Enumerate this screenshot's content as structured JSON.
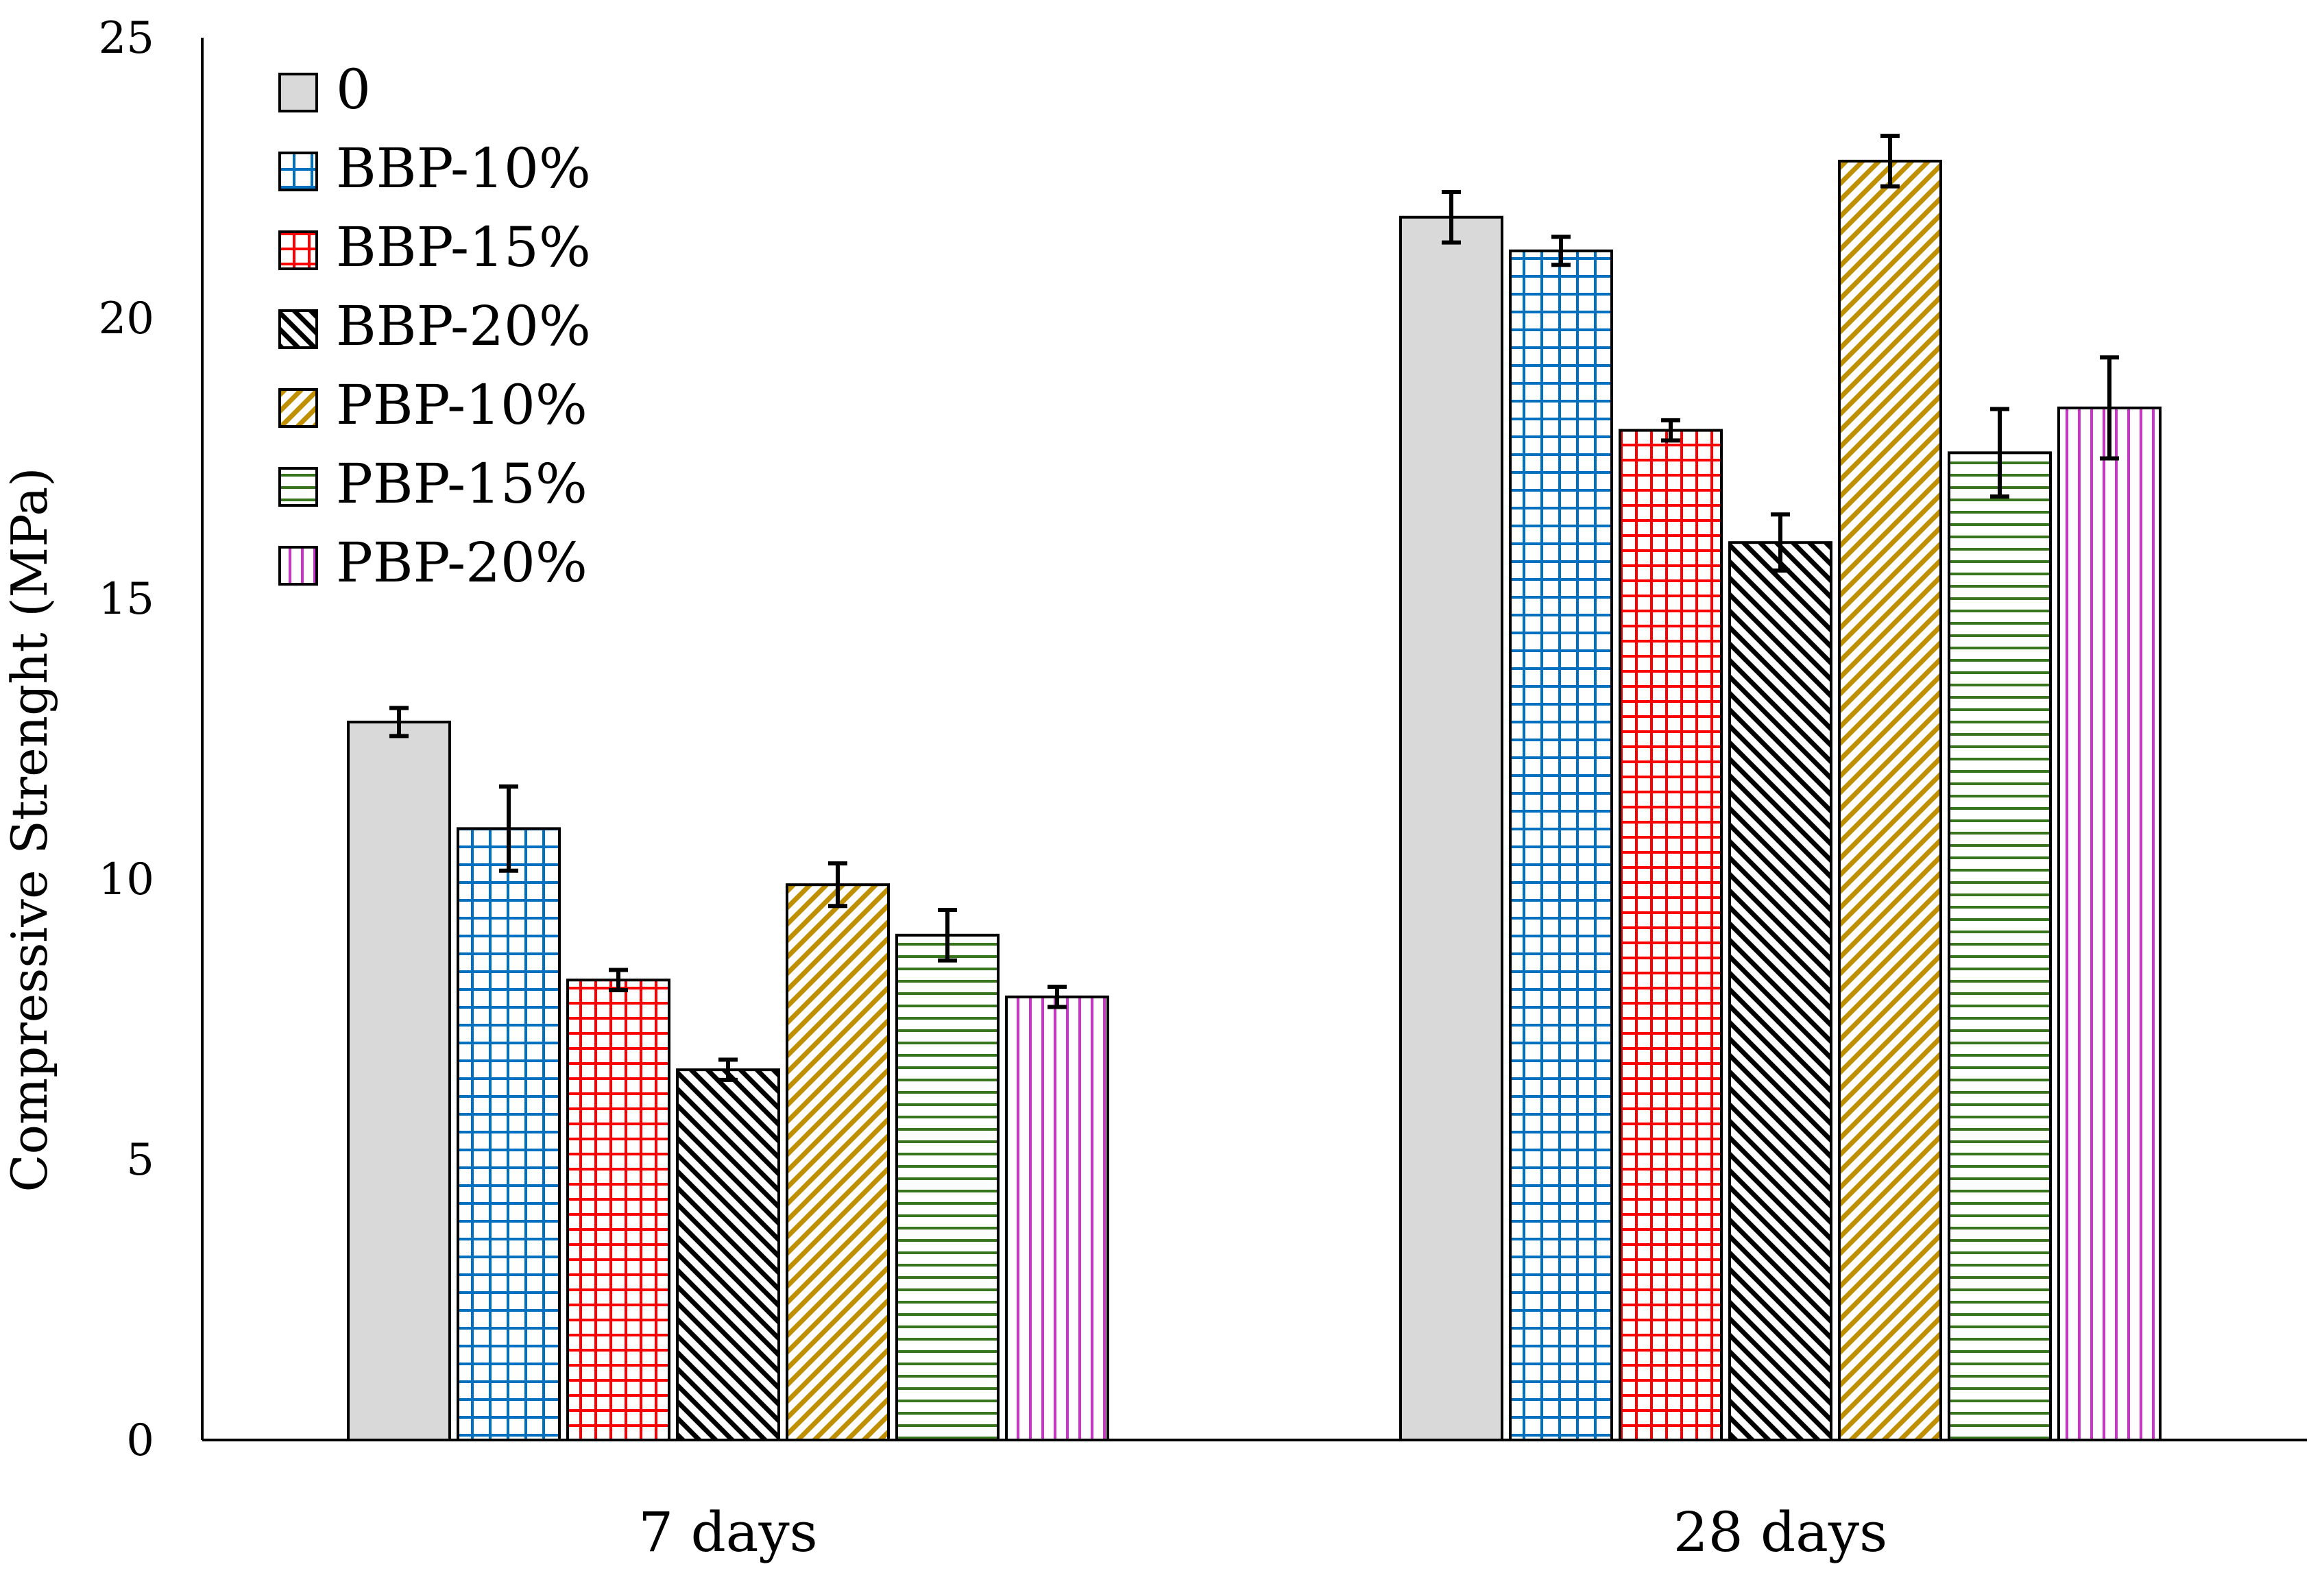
{
  "chart_data": {
    "type": "bar",
    "title": "",
    "xlabel": "",
    "ylabel": "Compressive  Strenght  (MPa)",
    "ylim": [
      0,
      25
    ],
    "yticks": [
      0,
      5,
      10,
      15,
      20,
      25
    ],
    "categories": [
      "7 days",
      "28 days"
    ],
    "legend_position": "top-left",
    "grid": false,
    "series": [
      {
        "name": "0",
        "values": [
          12.8,
          21.8
        ],
        "errors": [
          0.25,
          0.45
        ],
        "color": "#d9d9d9",
        "pattern": "solid"
      },
      {
        "name": "BBP-10%",
        "values": [
          10.9,
          21.2
        ],
        "errors": [
          0.75,
          0.25
        ],
        "color": "#0070c0",
        "pattern": "grid-wide"
      },
      {
        "name": "BBP-15%",
        "values": [
          8.2,
          18.0
        ],
        "errors": [
          0.18,
          0.18
        ],
        "color": "#ff0000",
        "pattern": "grid"
      },
      {
        "name": "BBP-20%",
        "values": [
          6.6,
          16.0
        ],
        "errors": [
          0.18,
          0.5
        ],
        "color": "#000000",
        "pattern": "diag-down"
      },
      {
        "name": "PBP-10%",
        "values": [
          9.9,
          22.8
        ],
        "errors": [
          0.38,
          0.45
        ],
        "color": "#bf8f00",
        "pattern": "diag-up"
      },
      {
        "name": "PBP-15%",
        "values": [
          9.0,
          17.6
        ],
        "errors": [
          0.45,
          0.78
        ],
        "color": "#38761d",
        "pattern": "horizontal"
      },
      {
        "name": "PBP-20%",
        "values": [
          7.9,
          18.4
        ],
        "errors": [
          0.18,
          0.9
        ],
        "color": "#cc33cc",
        "pattern": "vertical"
      }
    ]
  }
}
